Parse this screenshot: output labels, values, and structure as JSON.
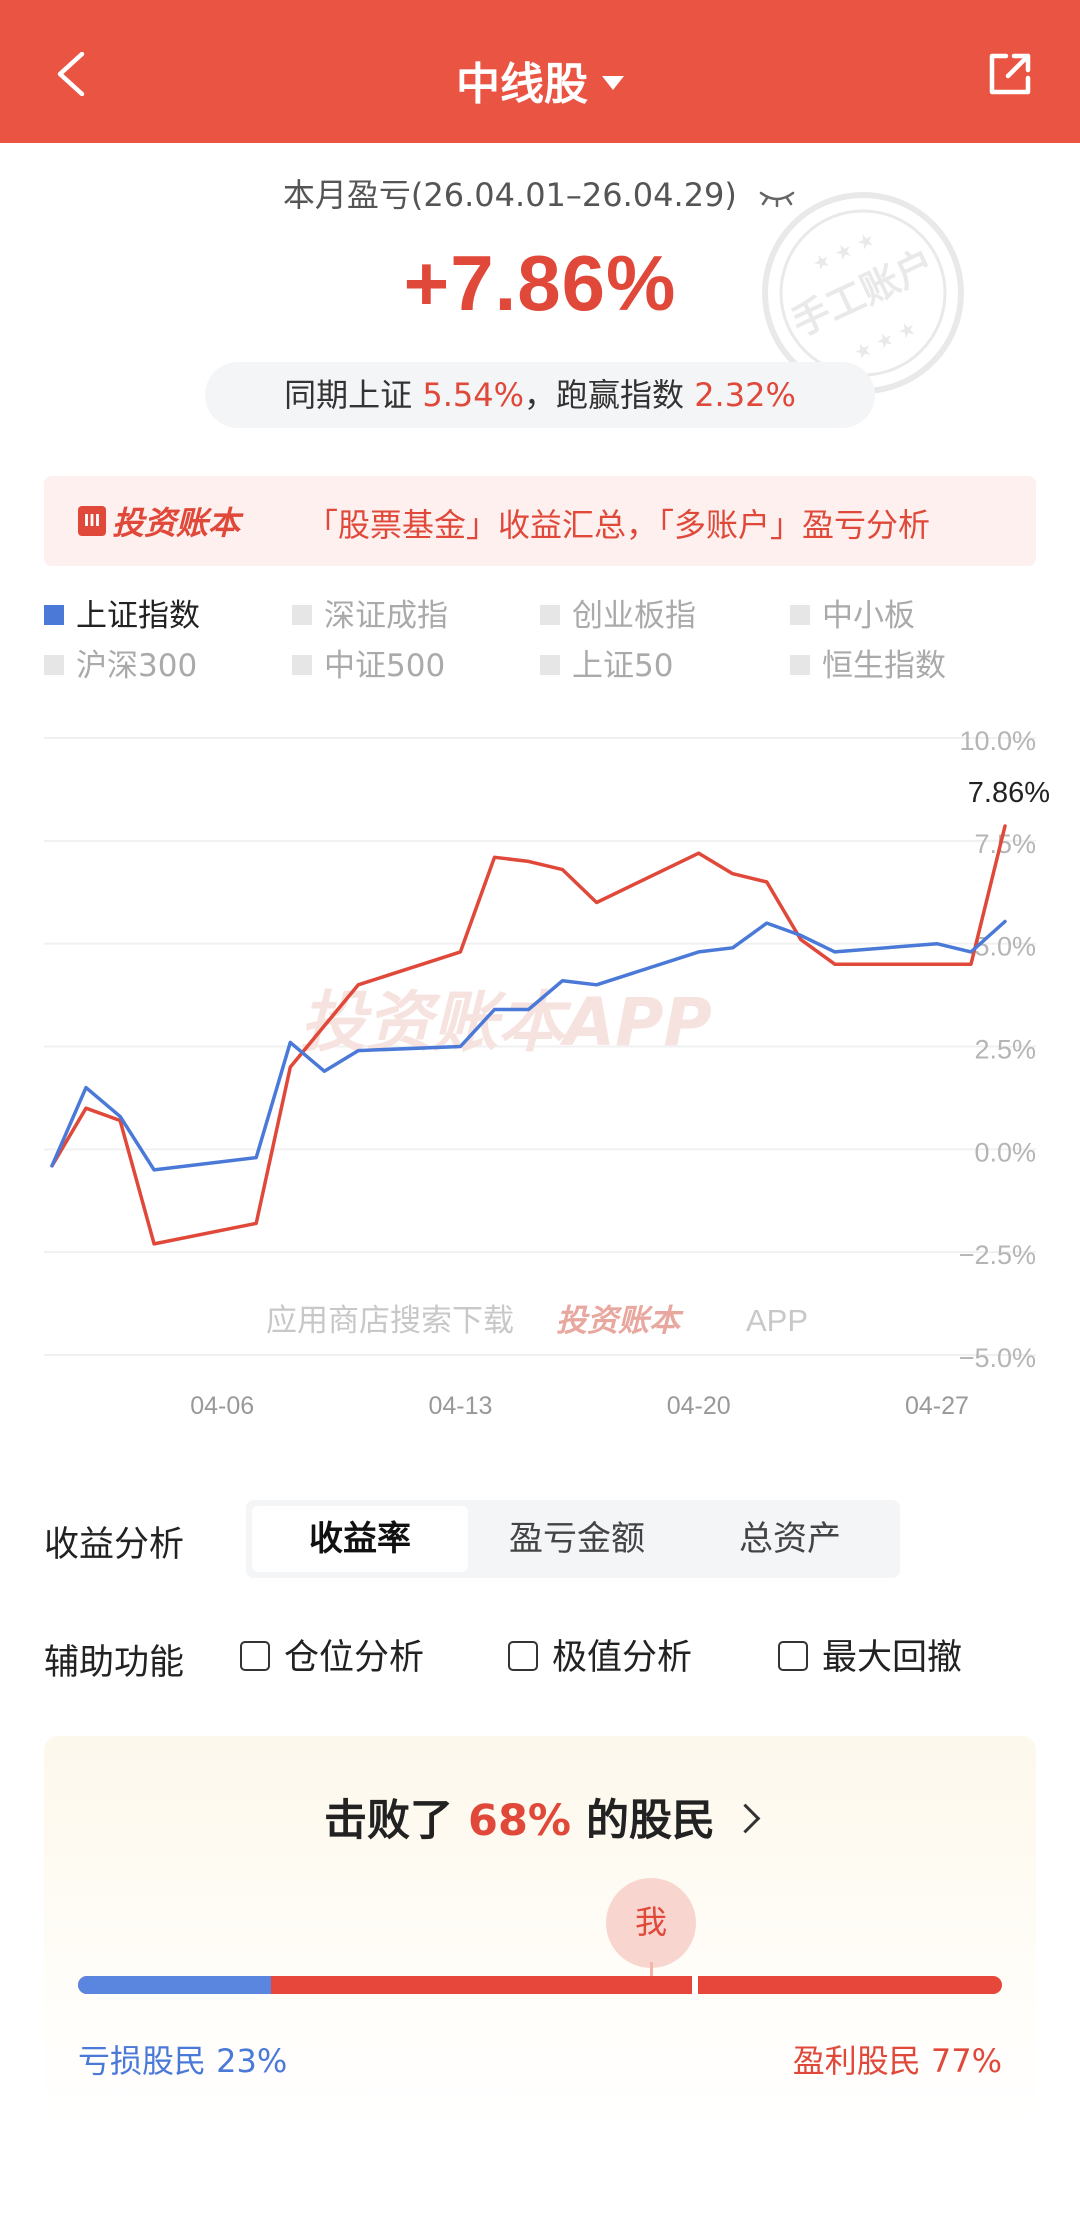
{
  "header": {
    "title": "中线股",
    "bg_color": "#ea5443"
  },
  "summary": {
    "period_label": "本月盈亏(26.04.01–26.04.29)",
    "return_value": "+7.86%",
    "compare_prefix": "同期上证",
    "compare_index_return": "5.54%",
    "compare_sep": "，",
    "compare_mid": "跑赢指数",
    "compare_outperform": "2.32%",
    "stamp_text": "手工账户"
  },
  "banner": {
    "logo_text": "投资账本",
    "logo_mark": "lll",
    "message": "「股票基金」收益汇总，「多账户」盈亏分析"
  },
  "legend": [
    {
      "label": "上证指数",
      "active": true
    },
    {
      "label": "深证成指",
      "active": false
    },
    {
      "label": "创业板指",
      "active": false
    },
    {
      "label": "中小板",
      "active": false
    },
    {
      "label": "沪深300",
      "active": false
    },
    {
      "label": "中证500",
      "active": false
    },
    {
      "label": "上证50",
      "active": false
    },
    {
      "label": "恒生指数",
      "active": false
    }
  ],
  "chart_data": {
    "type": "line",
    "x_ticks": [
      "04-06",
      "04-13",
      "04-20",
      "04-27"
    ],
    "y_ticks": [
      "10.0%",
      "7.5%",
      "5.0%",
      "2.5%",
      "0.0%",
      "−2.5%",
      "−5.0%"
    ],
    "ylim": [
      -5,
      10
    ],
    "grid": true,
    "end_label": "7.86%",
    "watermark": "投资账本APP",
    "download_hint": "应用商店搜索下载",
    "download_app": "投资账本",
    "download_suffix": "APP",
    "series": [
      {
        "color": "#e0483a",
        "points": [
          [
            "04-01",
            -0.4
          ],
          [
            "04-02",
            1.0
          ],
          [
            "04-03",
            0.7
          ],
          [
            "04-04",
            -2.3
          ],
          [
            "04-07",
            -1.8
          ],
          [
            "04-08",
            2.0
          ],
          [
            "04-09",
            3.0
          ],
          [
            "04-10",
            4.0
          ],
          [
            "04-13",
            4.8
          ],
          [
            "04-14",
            7.1
          ],
          [
            "04-15",
            7.0
          ],
          [
            "04-16",
            6.8
          ],
          [
            "04-17",
            6.0
          ],
          [
            "04-20",
            7.2
          ],
          [
            "04-21",
            6.7
          ],
          [
            "04-22",
            6.5
          ],
          [
            "04-23",
            5.1
          ],
          [
            "04-24",
            4.5
          ],
          [
            "04-27",
            4.5
          ],
          [
            "04-28",
            4.5
          ],
          [
            "04-29",
            7.86
          ]
        ]
      },
      {
        "name": "上证指数",
        "color": "#4a79d8",
        "points": [
          [
            "04-01",
            -0.4
          ],
          [
            "04-02",
            1.5
          ],
          [
            "04-03",
            0.8
          ],
          [
            "04-04",
            -0.5
          ],
          [
            "04-07",
            -0.2
          ],
          [
            "04-08",
            2.6
          ],
          [
            "04-09",
            1.9
          ],
          [
            "04-10",
            2.4
          ],
          [
            "04-13",
            2.5
          ],
          [
            "04-14",
            3.4
          ],
          [
            "04-15",
            3.4
          ],
          [
            "04-16",
            4.1
          ],
          [
            "04-17",
            4.0
          ],
          [
            "04-20",
            4.8
          ],
          [
            "04-21",
            4.9
          ],
          [
            "04-22",
            5.5
          ],
          [
            "04-23",
            5.2
          ],
          [
            "04-24",
            4.8
          ],
          [
            "04-27",
            5.0
          ],
          [
            "04-28",
            4.8
          ],
          [
            "04-29",
            5.54
          ]
        ]
      }
    ]
  },
  "analysis": {
    "label": "收益分析",
    "tabs": [
      {
        "label": "收益率",
        "active": true
      },
      {
        "label": "盈亏金额",
        "active": false
      },
      {
        "label": "总资产",
        "active": false
      }
    ]
  },
  "assist": {
    "label": "辅助功能",
    "options": [
      "仓位分析",
      "极值分析",
      "最大回撤"
    ]
  },
  "beat": {
    "prefix": "击败了",
    "percent": "68%",
    "suffix": "的股民",
    "me_label": "我",
    "position": 0.68,
    "loss_label": "亏损股民 23%",
    "loss_share": 0.23,
    "win_label": "盈利股民 77%",
    "win_share": 0.77
  }
}
